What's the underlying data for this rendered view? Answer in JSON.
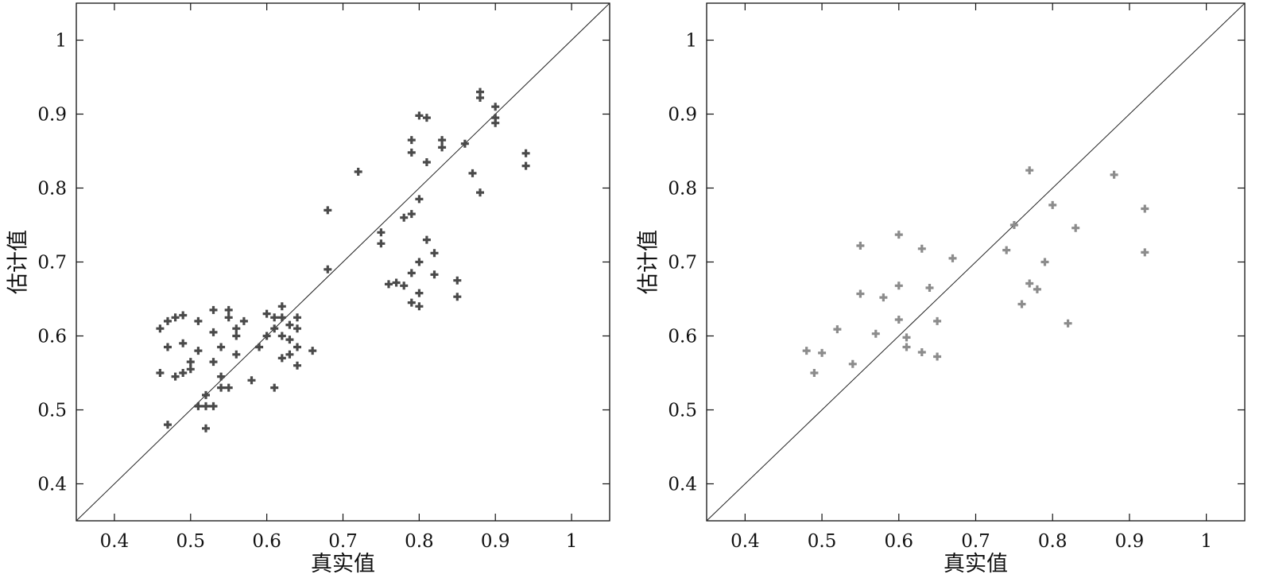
{
  "chart_data": [
    {
      "type": "scatter",
      "xlabel": "真实值",
      "ylabel": "估计值",
      "xlim": [
        0.35,
        1.05
      ],
      "ylim": [
        0.35,
        1.05
      ],
      "xticks": [
        "0.4",
        "0.5",
        "0.6",
        "0.7",
        "0.8",
        "0.9",
        "1"
      ],
      "yticks": [
        "0.4",
        "0.5",
        "0.6",
        "0.7",
        "0.8",
        "0.9",
        "1"
      ],
      "reference_line": "y = x",
      "marker_color": "#4a4a4a",
      "points": [
        [
          0.46,
          0.61
        ],
        [
          0.46,
          0.55
        ],
        [
          0.47,
          0.62
        ],
        [
          0.48,
          0.625
        ],
        [
          0.49,
          0.628
        ],
        [
          0.47,
          0.585
        ],
        [
          0.48,
          0.545
        ],
        [
          0.49,
          0.59
        ],
        [
          0.49,
          0.55
        ],
        [
          0.5,
          0.555
        ],
        [
          0.5,
          0.565
        ],
        [
          0.51,
          0.62
        ],
        [
          0.51,
          0.58
        ],
        [
          0.52,
          0.52
        ],
        [
          0.53,
          0.635
        ],
        [
          0.53,
          0.605
        ],
        [
          0.53,
          0.565
        ],
        [
          0.54,
          0.585
        ],
        [
          0.54,
          0.545
        ],
        [
          0.54,
          0.53
        ],
        [
          0.55,
          0.635
        ],
        [
          0.55,
          0.625
        ],
        [
          0.56,
          0.61
        ],
        [
          0.56,
          0.6
        ],
        [
          0.56,
          0.575
        ],
        [
          0.57,
          0.62
        ],
        [
          0.55,
          0.53
        ],
        [
          0.51,
          0.505
        ],
        [
          0.52,
          0.505
        ],
        [
          0.53,
          0.505
        ],
        [
          0.47,
          0.48
        ],
        [
          0.52,
          0.475
        ],
        [
          0.58,
          0.54
        ],
        [
          0.59,
          0.585
        ],
        [
          0.6,
          0.63
        ],
        [
          0.6,
          0.6
        ],
        [
          0.61,
          0.61
        ],
        [
          0.61,
          0.625
        ],
        [
          0.62,
          0.64
        ],
        [
          0.62,
          0.625
        ],
        [
          0.62,
          0.6
        ],
        [
          0.63,
          0.615
        ],
        [
          0.63,
          0.595
        ],
        [
          0.64,
          0.625
        ],
        [
          0.64,
          0.61
        ],
        [
          0.64,
          0.585
        ],
        [
          0.62,
          0.57
        ],
        [
          0.63,
          0.575
        ],
        [
          0.64,
          0.56
        ],
        [
          0.66,
          0.58
        ],
        [
          0.61,
          0.53
        ],
        [
          0.68,
          0.77
        ],
        [
          0.68,
          0.69
        ],
        [
          0.72,
          0.822
        ],
        [
          0.75,
          0.74
        ],
        [
          0.75,
          0.725
        ],
        [
          0.76,
          0.67
        ],
        [
          0.77,
          0.672
        ],
        [
          0.78,
          0.668
        ],
        [
          0.78,
          0.76
        ],
        [
          0.79,
          0.765
        ],
        [
          0.79,
          0.685
        ],
        [
          0.79,
          0.645
        ],
        [
          0.8,
          0.785
        ],
        [
          0.8,
          0.7
        ],
        [
          0.8,
          0.658
        ],
        [
          0.8,
          0.64
        ],
        [
          0.81,
          0.73
        ],
        [
          0.82,
          0.712
        ],
        [
          0.82,
          0.683
        ],
        [
          0.79,
          0.865
        ],
        [
          0.79,
          0.848
        ],
        [
          0.8,
          0.898
        ],
        [
          0.81,
          0.895
        ],
        [
          0.81,
          0.835
        ],
        [
          0.83,
          0.865
        ],
        [
          0.83,
          0.855
        ],
        [
          0.85,
          0.675
        ],
        [
          0.85,
          0.653
        ],
        [
          0.86,
          0.86
        ],
        [
          0.87,
          0.82
        ],
        [
          0.88,
          0.93
        ],
        [
          0.88,
          0.922
        ],
        [
          0.88,
          0.794
        ],
        [
          0.9,
          0.91
        ],
        [
          0.9,
          0.895
        ],
        [
          0.9,
          0.888
        ],
        [
          0.94,
          0.847
        ],
        [
          0.94,
          0.83
        ]
      ]
    },
    {
      "type": "scatter",
      "xlabel": "真实值",
      "ylabel": "估计值",
      "xlim": [
        0.35,
        1.05
      ],
      "ylim": [
        0.35,
        1.05
      ],
      "xticks": [
        "0.4",
        "0.5",
        "0.6",
        "0.7",
        "0.8",
        "0.9",
        "1"
      ],
      "yticks": [
        "0.4",
        "0.5",
        "0.6",
        "0.7",
        "0.8",
        "0.9",
        "1"
      ],
      "reference_line": "y = x",
      "marker_color": "#8c8c8c",
      "points": [
        [
          0.48,
          0.58
        ],
        [
          0.49,
          0.55
        ],
        [
          0.5,
          0.577
        ],
        [
          0.52,
          0.609
        ],
        [
          0.54,
          0.562
        ],
        [
          0.55,
          0.722
        ],
        [
          0.55,
          0.657
        ],
        [
          0.57,
          0.603
        ],
        [
          0.58,
          0.652
        ],
        [
          0.6,
          0.737
        ],
        [
          0.6,
          0.668
        ],
        [
          0.6,
          0.622
        ],
        [
          0.61,
          0.598
        ],
        [
          0.61,
          0.585
        ],
        [
          0.63,
          0.718
        ],
        [
          0.63,
          0.578
        ],
        [
          0.64,
          0.665
        ],
        [
          0.65,
          0.62
        ],
        [
          0.65,
          0.572
        ],
        [
          0.67,
          0.705
        ],
        [
          0.74,
          0.716
        ],
        [
          0.75,
          0.75
        ],
        [
          0.76,
          0.643
        ],
        [
          0.77,
          0.824
        ],
        [
          0.77,
          0.671
        ],
        [
          0.78,
          0.663
        ],
        [
          0.79,
          0.7
        ],
        [
          0.8,
          0.777
        ],
        [
          0.82,
          0.617
        ],
        [
          0.83,
          0.746
        ],
        [
          0.88,
          0.818
        ],
        [
          0.92,
          0.772
        ],
        [
          0.92,
          0.713
        ]
      ]
    }
  ]
}
